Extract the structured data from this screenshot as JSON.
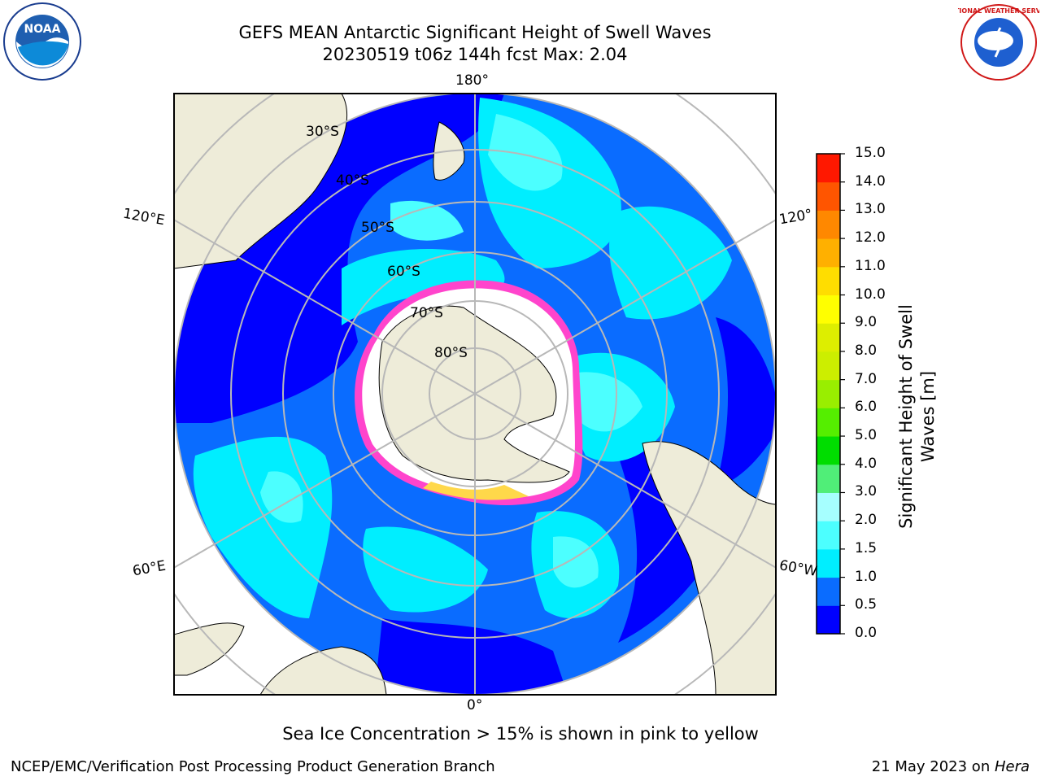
{
  "title": "GEFS MEAN Antarctic Significant Height of Swell Waves",
  "subtitle": "20230519 t06z 144h fcst   Max: 2.04",
  "logos": {
    "left": "noaa-logo",
    "right": "national-weather-service-logo",
    "left_text": "NOAA",
    "right_text": "NATIONAL WEATHER SERVICE"
  },
  "map": {
    "projection": "south-polar-stereographic",
    "longitude_labels": {
      "top": "180°",
      "bottom": "0°",
      "upper_left": "120°E",
      "upper_right": "120°",
      "lower_left": "60°E",
      "lower_right": "60°W"
    },
    "latitude_labels": [
      "30°S",
      "40°S",
      "50°S",
      "60°S",
      "70°S",
      "80°S"
    ],
    "colors": {
      "land": "#eeecd9",
      "sea_ice": "#ff44cc",
      "ocean_low": "#0000ff",
      "ocean_mid": "#0a6cff",
      "ocean_high": "#00eeff"
    }
  },
  "colorbar": {
    "title_line1": "Significant Height of Swell",
    "title_line2": "Waves [m]",
    "ticks": [
      "0.0",
      "0.5",
      "1.0",
      "1.5",
      "2.0",
      "3.0",
      "4.0",
      "5.0",
      "6.0",
      "7.0",
      "8.0",
      "9.0",
      "10.0",
      "11.0",
      "12.0",
      "13.0",
      "14.0",
      "15.0"
    ],
    "colors": [
      "#0000ff",
      "#0a6cff",
      "#00eeff",
      "#4cffff",
      "#a6ffff",
      "#50ee78",
      "#00dd00",
      "#55ee00",
      "#99ee00",
      "#ccee00",
      "#ddee00",
      "#ffff00",
      "#ffdd00",
      "#ffb000",
      "#ff8800",
      "#ff5500",
      "#ff1800"
    ]
  },
  "note": "Sea Ice Concentration > 15% is shown in pink to yellow",
  "footer": {
    "left": "NCEP/EMC/Verification Post Processing Product Generation Branch",
    "date": "21 May 2023 on ",
    "host": "Hera"
  }
}
